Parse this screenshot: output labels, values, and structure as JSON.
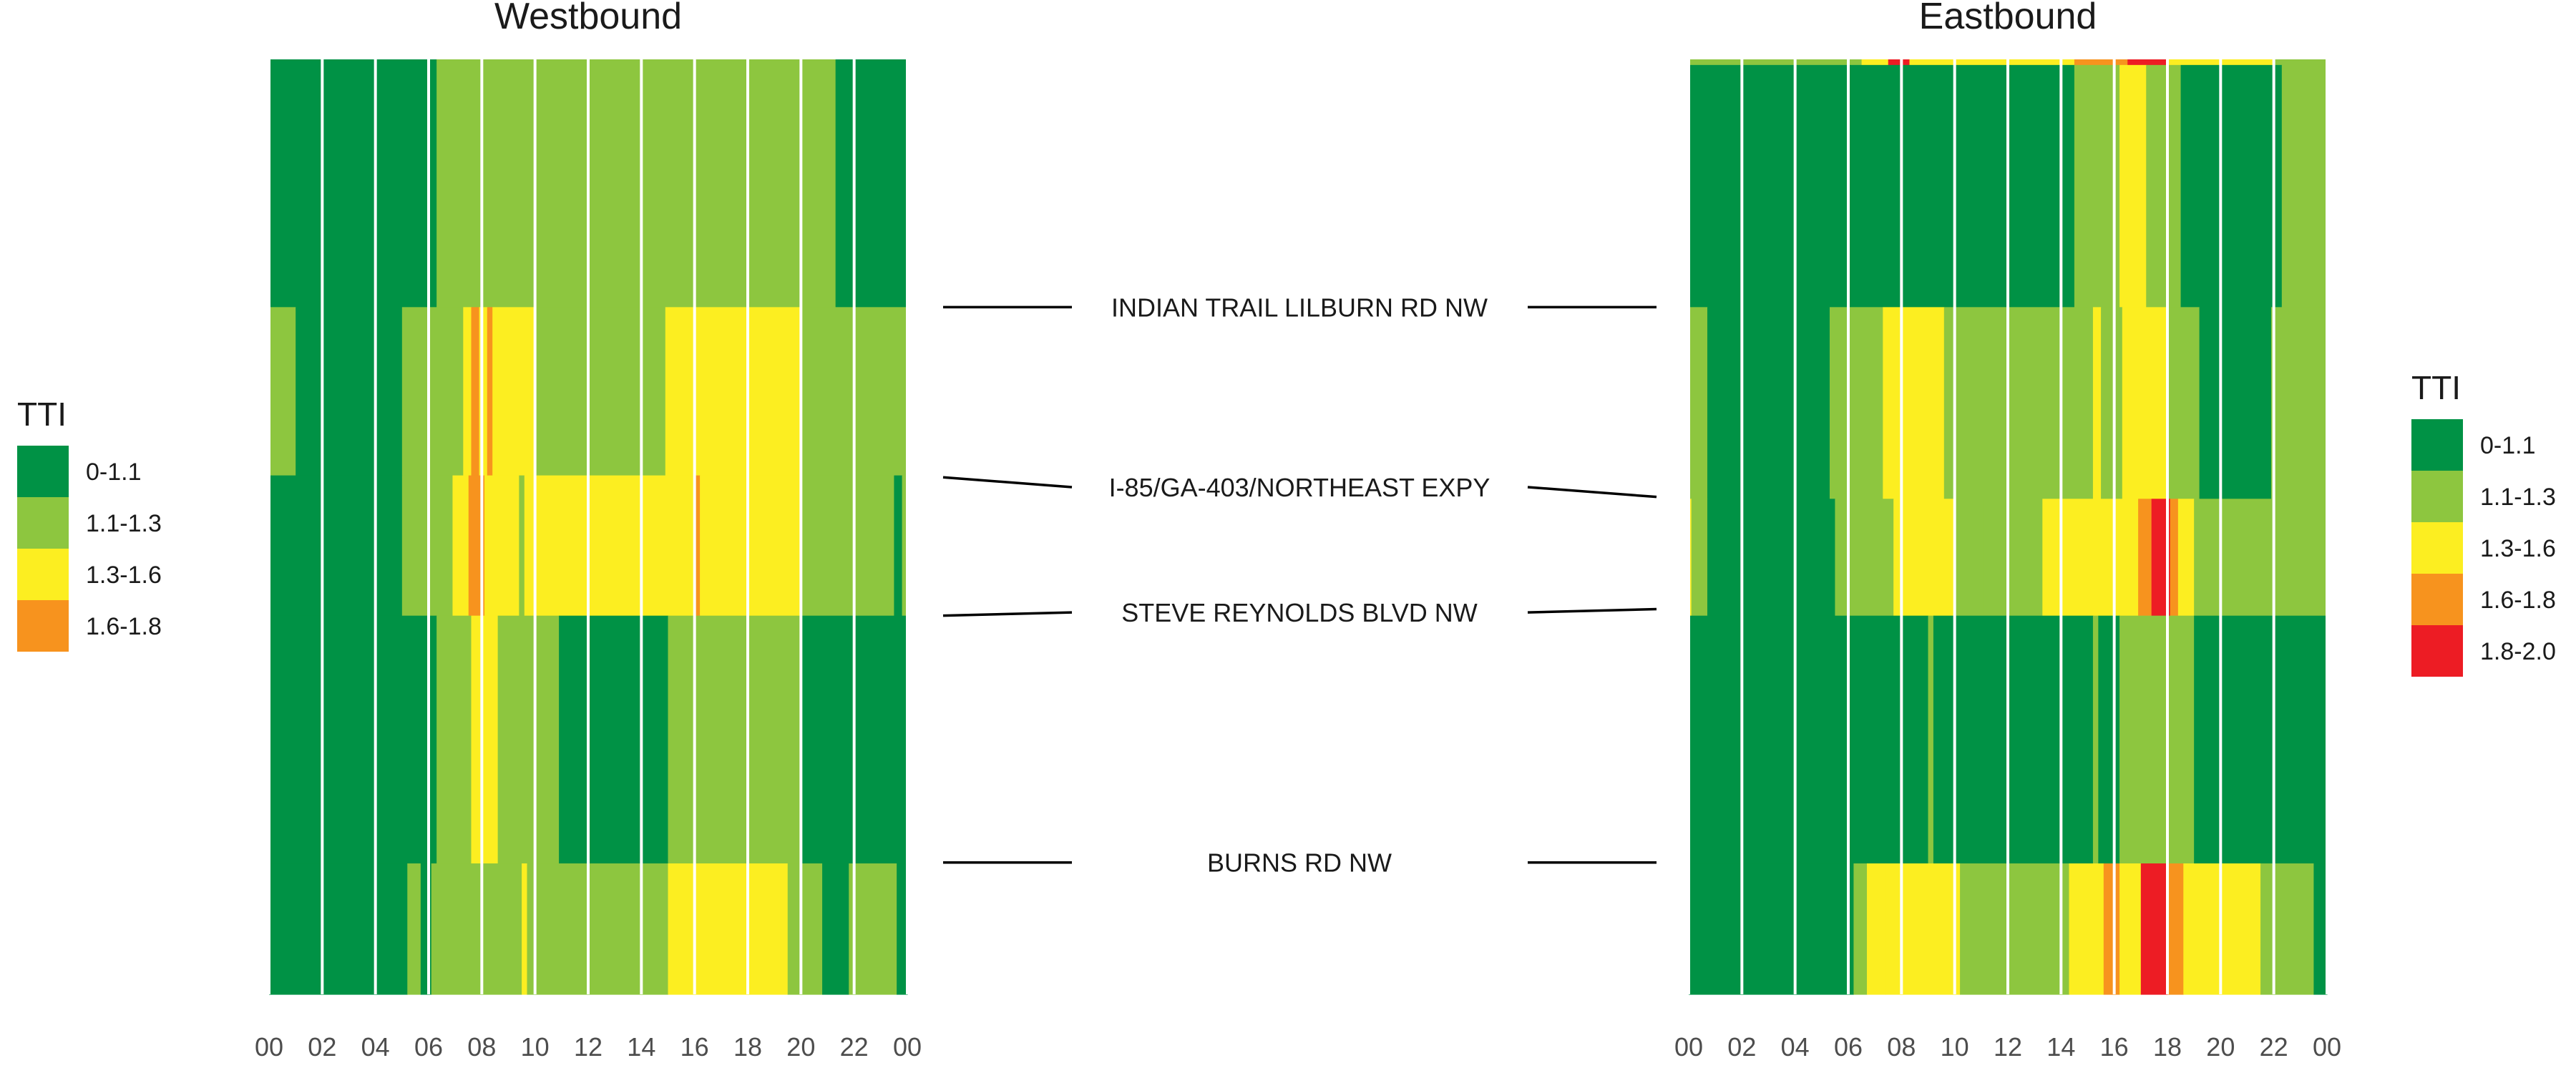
{
  "chart_data": {
    "type": "heatmap",
    "x_ticks": [
      "00",
      "02",
      "04",
      "06",
      "08",
      "10",
      "12",
      "14",
      "16",
      "18",
      "20",
      "22",
      "00"
    ],
    "x_range_hours": [
      0,
      24
    ],
    "road_labels": [
      {
        "name": "INDIAN TRAIL LILBURN RD NW",
        "wb_frac": 0.265,
        "eb_frac": 0.265
      },
      {
        "name": "I-85/GA-403/NORTHEAST EXPY",
        "wb_frac": 0.447,
        "eb_frac": 0.468
      },
      {
        "name": "STEVE REYNOLDS BLVD NW",
        "wb_frac": 0.595,
        "eb_frac": 0.588
      },
      {
        "name": "BURNS RD NW",
        "wb_frac": 0.859,
        "eb_frac": 0.859
      }
    ],
    "panels": [
      {
        "title": "Westbound",
        "legend_title": "TTI",
        "legend": [
          {
            "label": "0-1.1",
            "color": "#009245"
          },
          {
            "label": "1.1-1.3",
            "color": "#8dc63f"
          },
          {
            "label": "1.3-1.6",
            "color": "#fcee21"
          },
          {
            "label": "1.6-1.8",
            "color": "#f7931e"
          }
        ],
        "bands": [
          {
            "y0": 0.0,
            "y1": 0.265,
            "segments": [
              [
                0,
                6.3,
                "#009245"
              ],
              [
                6.3,
                21.3,
                "#8dc63f"
              ],
              [
                21.3,
                24,
                "#009245"
              ]
            ]
          },
          {
            "y0": 0.265,
            "y1": 0.445,
            "segments": [
              [
                0,
                1,
                "#8dc63f"
              ],
              [
                1,
                5,
                "#009245"
              ],
              [
                5,
                7.3,
                "#8dc63f"
              ],
              [
                7.3,
                7.6,
                "#fcee21"
              ],
              [
                7.6,
                7.9,
                "#f7931e"
              ],
              [
                7.9,
                8.2,
                "#fcee21"
              ],
              [
                8.2,
                8.4,
                "#f7931e"
              ],
              [
                8.4,
                10,
                "#fcee21"
              ],
              [
                10,
                14.9,
                "#8dc63f"
              ],
              [
                14.9,
                20,
                "#fcee21"
              ],
              [
                20,
                24,
                "#8dc63f"
              ]
            ]
          },
          {
            "y0": 0.445,
            "y1": 0.595,
            "segments": [
              [
                0,
                5,
                "#009245"
              ],
              [
                5,
                6.9,
                "#8dc63f"
              ],
              [
                6.9,
                7.5,
                "#fcee21"
              ],
              [
                7.5,
                8.1,
                "#f7931e"
              ],
              [
                8.1,
                9.4,
                "#fcee21"
              ],
              [
                9.4,
                9.6,
                "#8dc63f"
              ],
              [
                9.6,
                16,
                "#fcee21"
              ],
              [
                16,
                16.2,
                "#f7931e"
              ],
              [
                16.2,
                20,
                "#fcee21"
              ],
              [
                20,
                23.5,
                "#8dc63f"
              ],
              [
                23.5,
                23.8,
                "#009245"
              ],
              [
                23.8,
                24,
                "#8dc63f"
              ]
            ]
          },
          {
            "y0": 0.595,
            "y1": 0.86,
            "segments": [
              [
                0,
                6.3,
                "#009245"
              ],
              [
                6.3,
                7.6,
                "#8dc63f"
              ],
              [
                7.6,
                8.6,
                "#fcee21"
              ],
              [
                8.6,
                10.9,
                "#8dc63f"
              ],
              [
                10.9,
                15,
                "#009245"
              ],
              [
                15,
                20,
                "#8dc63f"
              ],
              [
                20,
                24,
                "#009245"
              ]
            ]
          },
          {
            "y0": 0.86,
            "y1": 1.0,
            "segments": [
              [
                0,
                5.2,
                "#009245"
              ],
              [
                5.2,
                5.7,
                "#8dc63f"
              ],
              [
                5.7,
                6.1,
                "#009245"
              ],
              [
                6.1,
                9.5,
                "#8dc63f"
              ],
              [
                9.5,
                9.7,
                "#fcee21"
              ],
              [
                9.7,
                15,
                "#8dc63f"
              ],
              [
                15,
                19.5,
                "#fcee21"
              ],
              [
                19.5,
                20.8,
                "#8dc63f"
              ],
              [
                20.8,
                21.8,
                "#009245"
              ],
              [
                21.8,
                23.6,
                "#8dc63f"
              ],
              [
                23.6,
                24,
                "#009245"
              ]
            ]
          }
        ]
      },
      {
        "title": "Eastbound",
        "legend_title": "TTI",
        "legend": [
          {
            "label": "0-1.1",
            "color": "#009245"
          },
          {
            "label": "1.1-1.3",
            "color": "#8dc63f"
          },
          {
            "label": "1.3-1.6",
            "color": "#fcee21"
          },
          {
            "label": "1.6-1.8",
            "color": "#f7931e"
          },
          {
            "label": "1.8-2.0",
            "color": "#ed1c24"
          }
        ],
        "bands": [
          {
            "y0": 0.0,
            "y1": 0.006,
            "segments": [
              [
                0,
                6.5,
                "#8dc63f"
              ],
              [
                6.5,
                7.5,
                "#fcee21"
              ],
              [
                7.5,
                8.3,
                "#ed1c24"
              ],
              [
                8.3,
                14.5,
                "#fcee21"
              ],
              [
                14.5,
                16.5,
                "#f7931e"
              ],
              [
                16.5,
                18,
                "#ed1c24"
              ],
              [
                18,
                22,
                "#fcee21"
              ],
              [
                22,
                24,
                "#8dc63f"
              ]
            ]
          },
          {
            "y0": 0.006,
            "y1": 0.265,
            "segments": [
              [
                0,
                14.5,
                "#009245"
              ],
              [
                14.5,
                16.2,
                "#8dc63f"
              ],
              [
                16.2,
                17.2,
                "#fcee21"
              ],
              [
                17.2,
                18.5,
                "#8dc63f"
              ],
              [
                18.5,
                22.3,
                "#009245"
              ],
              [
                22.3,
                24,
                "#8dc63f"
              ]
            ]
          },
          {
            "y0": 0.265,
            "y1": 0.47,
            "segments": [
              [
                0,
                0.7,
                "#8dc63f"
              ],
              [
                0.7,
                5.3,
                "#009245"
              ],
              [
                5.3,
                7.3,
                "#8dc63f"
              ],
              [
                7.3,
                9.6,
                "#fcee21"
              ],
              [
                9.6,
                15.2,
                "#8dc63f"
              ],
              [
                15.2,
                15.5,
                "#fcee21"
              ],
              [
                15.5,
                16.3,
                "#8dc63f"
              ],
              [
                16.3,
                18,
                "#fcee21"
              ],
              [
                18,
                19.2,
                "#8dc63f"
              ],
              [
                19.2,
                21.9,
                "#009245"
              ],
              [
                21.9,
                24,
                "#8dc63f"
              ]
            ]
          },
          {
            "y0": 0.47,
            "y1": 0.595,
            "segments": [
              [
                0,
                0.1,
                "#fcee21"
              ],
              [
                0.1,
                0.7,
                "#8dc63f"
              ],
              [
                0.7,
                5.5,
                "#009245"
              ],
              [
                5.5,
                7.7,
                "#8dc63f"
              ],
              [
                7.7,
                10,
                "#fcee21"
              ],
              [
                10,
                11.1,
                "#8dc63f"
              ],
              [
                11.1,
                13.3,
                "#8dc63f"
              ],
              [
                13.3,
                16.9,
                "#fcee21"
              ],
              [
                16.9,
                17.4,
                "#f7931e"
              ],
              [
                17.4,
                18.1,
                "#ed1c24"
              ],
              [
                18.1,
                18.4,
                "#f7931e"
              ],
              [
                18.4,
                19,
                "#fcee21"
              ],
              [
                19,
                24,
                "#8dc63f"
              ]
            ]
          },
          {
            "y0": 0.595,
            "y1": 0.86,
            "segments": [
              [
                0,
                9,
                "#009245"
              ],
              [
                9,
                9.2,
                "#8dc63f"
              ],
              [
                9.2,
                15.2,
                "#009245"
              ],
              [
                15.2,
                15.4,
                "#8dc63f"
              ],
              [
                15.4,
                16.2,
                "#009245"
              ],
              [
                16.2,
                19,
                "#8dc63f"
              ],
              [
                19,
                24,
                "#009245"
              ]
            ]
          },
          {
            "y0": 0.86,
            "y1": 1.0,
            "segments": [
              [
                0,
                6.2,
                "#009245"
              ],
              [
                6.2,
                6.7,
                "#8dc63f"
              ],
              [
                6.7,
                7.4,
                "#fcee21"
              ],
              [
                7.4,
                10.2,
                "#fcee21"
              ],
              [
                10.2,
                14.3,
                "#8dc63f"
              ],
              [
                14.3,
                15.6,
                "#fcee21"
              ],
              [
                15.6,
                16.2,
                "#f7931e"
              ],
              [
                16.2,
                17,
                "#fcee21"
              ],
              [
                17,
                18,
                "#ed1c24"
              ],
              [
                18,
                18.6,
                "#f7931e"
              ],
              [
                18.6,
                21.5,
                "#fcee21"
              ],
              [
                21.5,
                23.5,
                "#8dc63f"
              ],
              [
                23.5,
                24,
                "#009245"
              ]
            ]
          }
        ]
      }
    ]
  }
}
